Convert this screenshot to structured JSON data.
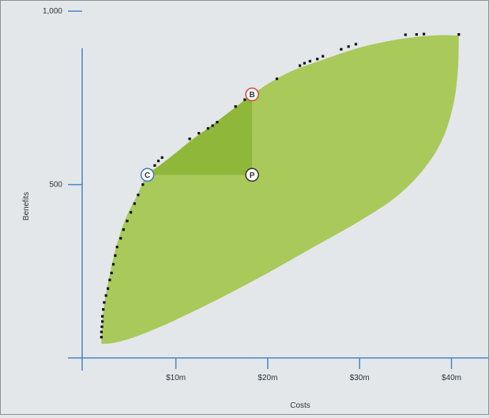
{
  "chart_data": {
    "type": "scatter",
    "title": "",
    "xlabel": "Costs",
    "ylabel": "Benefits",
    "xlim": [
      -0.2,
      44
    ],
    "ylim": [
      0,
      1030
    ],
    "x_ticks": [
      {
        "value": 10,
        "label": "$10m"
      },
      {
        "value": 20,
        "label": "$20m"
      },
      {
        "value": 30,
        "label": "$30m"
      },
      {
        "value": 40,
        "label": "$40m"
      }
    ],
    "y_ticks": [
      {
        "value": 500,
        "label": "500"
      },
      {
        "value": 1000,
        "label": "1,000"
      }
    ],
    "grid": false,
    "feasible_region": {
      "upper_boundary": [
        [
          1.9,
          40
        ],
        [
          2.0,
          110
        ],
        [
          2.3,
          170
        ],
        [
          2.8,
          240
        ],
        [
          3.5,
          320
        ],
        [
          4.5,
          400
        ],
        [
          5.8,
          470
        ],
        [
          6.9,
          528
        ],
        [
          9,
          570
        ],
        [
          12,
          635
        ],
        [
          15,
          690
        ],
        [
          18.3,
          760
        ],
        [
          22,
          820
        ],
        [
          26,
          860
        ],
        [
          30,
          895
        ],
        [
          34,
          918
        ],
        [
          38,
          930
        ],
        [
          40.8,
          930
        ]
      ],
      "lower_boundary": [
        [
          40.8,
          930
        ],
        [
          40.7,
          830
        ],
        [
          40.2,
          730
        ],
        [
          39,
          630
        ],
        [
          37,
          545
        ],
        [
          34,
          465
        ],
        [
          30,
          395
        ],
        [
          25,
          320
        ],
        [
          20,
          245
        ],
        [
          15,
          175
        ],
        [
          10,
          110
        ],
        [
          6,
          65
        ],
        [
          3.5,
          45
        ],
        [
          1.9,
          40
        ]
      ]
    },
    "dominance_triangle": [
      [
        6.9,
        528
      ],
      [
        18.3,
        760
      ],
      [
        18.3,
        528
      ]
    ],
    "frontier_points": [
      [
        1.9,
        60
      ],
      [
        1.9,
        75
      ],
      [
        1.95,
        90
      ],
      [
        2.0,
        105
      ],
      [
        2.0,
        120
      ],
      [
        2.1,
        140
      ],
      [
        2.2,
        160
      ],
      [
        2.4,
        180
      ],
      [
        2.6,
        200
      ],
      [
        2.8,
        225
      ],
      [
        3.0,
        245
      ],
      [
        3.2,
        270
      ],
      [
        3.4,
        295
      ],
      [
        3.6,
        320
      ],
      [
        4.0,
        345
      ],
      [
        4.3,
        370
      ],
      [
        4.7,
        395
      ],
      [
        5.1,
        420
      ],
      [
        5.5,
        445
      ],
      [
        5.9,
        470
      ],
      [
        6.4,
        500
      ],
      [
        6.9,
        525
      ],
      [
        7.3,
        540
      ],
      [
        7.7,
        555
      ],
      [
        8.1,
        568
      ],
      [
        8.5,
        578
      ],
      [
        11.5,
        632
      ],
      [
        12.5,
        648
      ],
      [
        13.5,
        662
      ],
      [
        14.0,
        670
      ],
      [
        14.5,
        680
      ],
      [
        16.5,
        725
      ],
      [
        17.5,
        745
      ],
      [
        18.3,
        760
      ],
      [
        21,
        805
      ],
      [
        23.5,
        843
      ],
      [
        24,
        850
      ],
      [
        24.6,
        856
      ],
      [
        25.4,
        862
      ],
      [
        26.0,
        870
      ],
      [
        28.0,
        890
      ],
      [
        28.8,
        898
      ],
      [
        29.6,
        905
      ],
      [
        35,
        932
      ],
      [
        36.2,
        933
      ],
      [
        37.0,
        934
      ],
      [
        40.8,
        933
      ]
    ],
    "markers": [
      {
        "label": "C",
        "x": 6.9,
        "y": 528,
        "color": "#3a7cc0"
      },
      {
        "label": "B",
        "x": 18.3,
        "y": 760,
        "color": "#d94040"
      },
      {
        "label": "P",
        "x": 18.3,
        "y": 528,
        "color": "#333333"
      }
    ],
    "colors": {
      "region": "#a9c95a",
      "triangle": "#8fb739",
      "axis": "#4a86c5",
      "points": "#111111"
    }
  }
}
